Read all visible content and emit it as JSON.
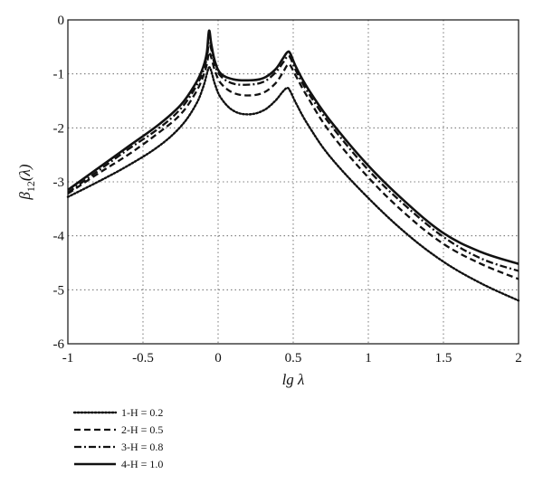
{
  "chart_data": {
    "type": "line",
    "xlabel": "lg λ",
    "ylabel_main": "β",
    "ylabel_sub": "12",
    "ylabel_tail": "(λ)",
    "xlim": [
      -1,
      2
    ],
    "ylim": [
      -6,
      0
    ],
    "xticks": [
      -1,
      -0.5,
      0,
      0.5,
      1,
      1.5,
      2
    ],
    "xtick_labels": [
      "-1",
      "-0.5",
      "0",
      "0.5",
      "1",
      "1.5",
      "2"
    ],
    "yticks": [
      0,
      -1,
      -2,
      -3,
      -4,
      -5,
      -6
    ],
    "ytick_labels": [
      "0",
      "-1",
      "-2",
      "-3",
      "-4",
      "-5",
      "-6"
    ],
    "grid": true,
    "legend_position": "bottom-left-below-plot",
    "series": [
      {
        "name": "1-H = 0.2",
        "style": "dotted",
        "x": [
          -1,
          -0.8,
          -0.6,
          -0.4,
          -0.25,
          -0.15,
          -0.1,
          -0.075,
          -0.06,
          -0.045,
          -0.02,
          0.02,
          0.1,
          0.2,
          0.3,
          0.38,
          0.43,
          0.46,
          0.48,
          0.52,
          0.6,
          0.75,
          1.0,
          1.25,
          1.5,
          1.75,
          2.0
        ],
        "y": [
          -3.28,
          -3.0,
          -2.7,
          -2.35,
          -1.98,
          -1.58,
          -1.25,
          -1.0,
          -0.88,
          -0.95,
          -1.2,
          -1.45,
          -1.68,
          -1.75,
          -1.68,
          -1.5,
          -1.33,
          -1.26,
          -1.32,
          -1.55,
          -1.95,
          -2.55,
          -3.3,
          -3.95,
          -4.48,
          -4.88,
          -5.2
        ]
      },
      {
        "name": "2-H = 0.5",
        "style": "dashed",
        "x": [
          -1,
          -0.8,
          -0.6,
          -0.4,
          -0.25,
          -0.15,
          -0.1,
          -0.075,
          -0.06,
          -0.045,
          -0.02,
          0.02,
          0.1,
          0.2,
          0.3,
          0.38,
          0.43,
          0.46,
          0.48,
          0.52,
          0.6,
          0.75,
          1.0,
          1.25,
          1.5,
          1.75,
          2.0
        ],
        "y": [
          -3.22,
          -2.85,
          -2.5,
          -2.1,
          -1.75,
          -1.35,
          -1.05,
          -0.82,
          -0.6,
          -0.7,
          -0.95,
          -1.18,
          -1.35,
          -1.4,
          -1.35,
          -1.18,
          -0.98,
          -0.84,
          -0.84,
          -1.05,
          -1.45,
          -2.1,
          -2.92,
          -3.6,
          -4.15,
          -4.52,
          -4.8
        ]
      },
      {
        "name": "3-H = 0.8",
        "style": "dashdot",
        "x": [
          -1,
          -0.8,
          -0.6,
          -0.4,
          -0.25,
          -0.15,
          -0.1,
          -0.075,
          -0.06,
          -0.045,
          -0.02,
          0.02,
          0.1,
          0.2,
          0.3,
          0.38,
          0.43,
          0.46,
          0.48,
          0.52,
          0.6,
          0.75,
          1.0,
          1.25,
          1.5,
          1.75,
          2.0
        ],
        "y": [
          -3.2,
          -2.8,
          -2.4,
          -2.02,
          -1.65,
          -1.25,
          -0.95,
          -0.7,
          -0.42,
          -0.55,
          -0.85,
          -1.05,
          -1.18,
          -1.2,
          -1.15,
          -0.98,
          -0.8,
          -0.68,
          -0.7,
          -0.95,
          -1.35,
          -1.95,
          -2.78,
          -3.45,
          -4.02,
          -4.42,
          -4.65
        ]
      },
      {
        "name": "4-H = 1.0",
        "style": "solid",
        "x": [
          -1,
          -0.8,
          -0.6,
          -0.4,
          -0.25,
          -0.15,
          -0.1,
          -0.075,
          -0.06,
          -0.045,
          -0.02,
          0.02,
          0.1,
          0.2,
          0.3,
          0.38,
          0.43,
          0.46,
          0.48,
          0.52,
          0.6,
          0.75,
          1.0,
          1.25,
          1.5,
          1.75,
          2.0
        ],
        "y": [
          -3.15,
          -2.75,
          -2.35,
          -1.95,
          -1.58,
          -1.18,
          -0.88,
          -0.6,
          -0.2,
          -0.45,
          -0.78,
          -1.0,
          -1.1,
          -1.12,
          -1.08,
          -0.92,
          -0.72,
          -0.6,
          -0.62,
          -0.88,
          -1.28,
          -1.88,
          -2.7,
          -3.38,
          -3.95,
          -4.3,
          -4.52
        ]
      }
    ]
  }
}
